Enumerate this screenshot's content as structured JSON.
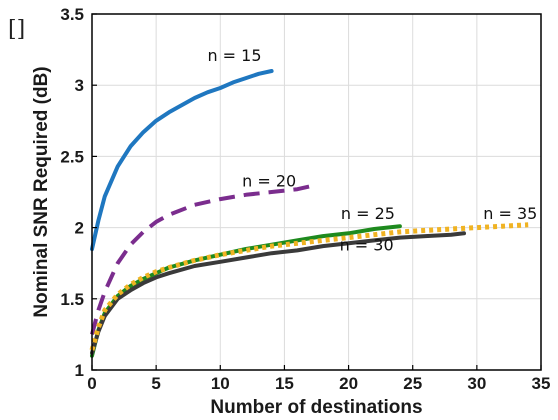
{
  "chart_data": {
    "type": "line",
    "xlabel": "Number of destinations",
    "ylabel": "Nominal SNR Required (dB)",
    "xlim": [
      0,
      35
    ],
    "ylim": [
      1,
      3.5
    ],
    "xticks": [
      0,
      5,
      10,
      15,
      20,
      25,
      30,
      35
    ],
    "yticks": [
      1,
      1.5,
      2,
      2.5,
      3,
      3.5
    ],
    "xtick_labels": [
      "0",
      "5",
      "10",
      "15",
      "20",
      "25",
      "30",
      "35"
    ],
    "ytick_labels": [
      "1",
      "1.5",
      "2",
      "2.5",
      "3",
      "3.5"
    ],
    "grid": true,
    "corner_mark": "[]",
    "series": [
      {
        "name": "n = 15",
        "color": "#1f77c0",
        "style": "solid",
        "x": [
          0,
          0.5,
          1,
          2,
          3,
          4,
          5,
          6,
          7,
          8,
          9,
          10,
          11,
          12,
          13,
          14
        ],
        "y": [
          1.85,
          2.05,
          2.22,
          2.43,
          2.57,
          2.67,
          2.75,
          2.81,
          2.86,
          2.91,
          2.95,
          2.98,
          3.02,
          3.05,
          3.08,
          3.1
        ]
      },
      {
        "name": "n = 20",
        "color": "#7b2d8e",
        "style": "dashed",
        "x": [
          0,
          0.5,
          1,
          2,
          3,
          4,
          5,
          6,
          8,
          10,
          12,
          14,
          16,
          17
        ],
        "y": [
          1.25,
          1.42,
          1.55,
          1.75,
          1.88,
          1.97,
          2.04,
          2.09,
          2.16,
          2.2,
          2.23,
          2.25,
          2.27,
          2.29
        ]
      },
      {
        "name": "n = 25",
        "color": "#1e8a1e",
        "style": "solid",
        "x": [
          0,
          0.5,
          1,
          2,
          3,
          4,
          5,
          6,
          8,
          10,
          12,
          14,
          16,
          18,
          20,
          22,
          24
        ],
        "y": [
          1.1,
          1.28,
          1.4,
          1.52,
          1.59,
          1.64,
          1.68,
          1.72,
          1.77,
          1.81,
          1.85,
          1.88,
          1.91,
          1.94,
          1.96,
          1.99,
          2.01
        ]
      },
      {
        "name": "n = 30",
        "color": "#3a3a3a",
        "style": "solid",
        "x": [
          0,
          0.5,
          1,
          2,
          3,
          4,
          5,
          6,
          8,
          10,
          12,
          14,
          16,
          18,
          20,
          22,
          24,
          26,
          28,
          29
        ],
        "y": [
          1.12,
          1.27,
          1.38,
          1.5,
          1.56,
          1.61,
          1.65,
          1.68,
          1.73,
          1.76,
          1.79,
          1.82,
          1.84,
          1.87,
          1.89,
          1.91,
          1.93,
          1.94,
          1.95,
          1.96
        ]
      },
      {
        "name": "n = 35",
        "color": "#f0b323",
        "style": "dotted",
        "x": [
          0,
          0.5,
          1,
          2,
          3,
          4,
          5,
          6,
          8,
          10,
          12,
          14,
          16,
          18,
          20,
          22,
          24,
          26,
          28,
          30,
          32,
          34
        ],
        "y": [
          1.14,
          1.3,
          1.42,
          1.53,
          1.6,
          1.65,
          1.69,
          1.72,
          1.77,
          1.81,
          1.84,
          1.87,
          1.89,
          1.91,
          1.93,
          1.95,
          1.97,
          1.98,
          1.99,
          2.0,
          2.01,
          2.02
        ]
      }
    ],
    "annotations": [
      {
        "text": "n = 15",
        "x": 9.0,
        "y": 3.17
      },
      {
        "text": "n = 20",
        "x": 11.7,
        "y": 2.29
      },
      {
        "text": "n = 25",
        "x": 19.4,
        "y": 2.06
      },
      {
        "text": "n = 30",
        "x": 19.3,
        "y": 1.84
      },
      {
        "text": "n = 35",
        "x": 30.5,
        "y": 2.06
      }
    ]
  }
}
